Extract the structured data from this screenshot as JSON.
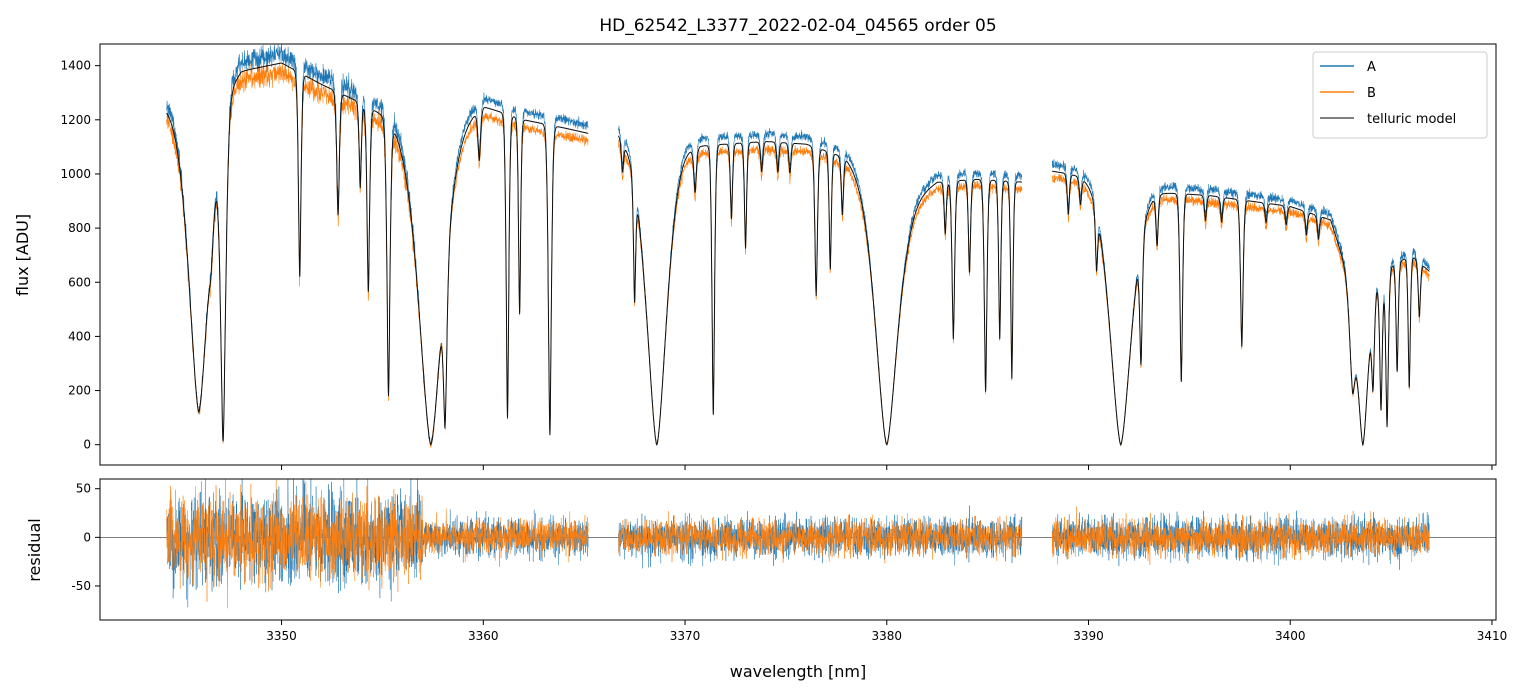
{
  "chart_data": [
    {
      "type": "line",
      "panel": "flux",
      "title": "HD_62542_L3377_2022-02-04_04565  order 05",
      "xlabel": "",
      "ylabel": "flux [ADU]",
      "xlim": [
        3341.0,
        3410.2
      ],
      "ylim": [
        -75,
        1480
      ],
      "yticks": [
        0,
        200,
        400,
        600,
        800,
        1000,
        1200,
        1400
      ],
      "xticks": [
        3350,
        3360,
        3370,
        3380,
        3390,
        3400,
        3410
      ],
      "grid": false,
      "legend": "top-right",
      "colors": {
        "A": "#1f77b4",
        "B": "#ff7f0e",
        "model": "#222222"
      },
      "segments": [
        {
          "x0": 3344.3,
          "x1": 3365.2,
          "continuum": [
            [
              3344.3,
              1250
            ],
            [
              3346.2,
              1200
            ],
            [
              3348.0,
              1380
            ],
            [
              3350.0,
              1410
            ],
            [
              3352.0,
              1330
            ],
            [
              3354.0,
              1260
            ],
            [
              3356.0,
              1180
            ],
            [
              3358.0,
              1150
            ],
            [
              3360.0,
              1250
            ],
            [
              3362.0,
              1200
            ],
            [
              3364.0,
              1170
            ],
            [
              3365.2,
              1150
            ]
          ]
        },
        {
          "x0": 3366.7,
          "x1": 3386.7,
          "continuum": [
            [
              3366.7,
              1150
            ],
            [
              3368.0,
              1050
            ],
            [
              3370.0,
              1100
            ],
            [
              3372.0,
              1110
            ],
            [
              3374.0,
              1120
            ],
            [
              3376.0,
              1110
            ],
            [
              3378.0,
              1060
            ],
            [
              3379.5,
              960
            ],
            [
              3381.0,
              900
            ],
            [
              3382.5,
              970
            ],
            [
              3384.5,
              980
            ],
            [
              3386.7,
              970
            ]
          ]
        },
        {
          "x0": 3388.2,
          "x1": 3406.9,
          "continuum": [
            [
              3388.2,
              1010
            ],
            [
              3390.0,
              990
            ],
            [
              3392.0,
              950
            ],
            [
              3394.0,
              930
            ],
            [
              3396.0,
              920
            ],
            [
              3398.0,
              900
            ],
            [
              3400.0,
              880
            ],
            [
              3402.0,
              830
            ],
            [
              3403.0,
              600
            ],
            [
              3404.5,
              640
            ],
            [
              3406.0,
              700
            ],
            [
              3406.9,
              640
            ]
          ]
        }
      ],
      "absorption_lines": [
        [
          3345.9,
          0.9,
          0.45
        ],
        [
          3347.1,
          0.99,
          0.12
        ],
        [
          3346.5,
          0.15,
          0.1
        ],
        [
          3350.9,
          0.55,
          0.06
        ],
        [
          3352.8,
          0.35,
          0.06
        ],
        [
          3353.9,
          0.25,
          0.05
        ],
        [
          3354.3,
          0.55,
          0.06
        ],
        [
          3355.3,
          0.85,
          0.07
        ],
        [
          3357.4,
          1.0,
          0.55
        ],
        [
          3358.1,
          0.9,
          0.08
        ],
        [
          3359.8,
          0.15,
          0.06
        ],
        [
          3361.2,
          0.92,
          0.06
        ],
        [
          3361.8,
          0.6,
          0.05
        ],
        [
          3363.3,
          0.97,
          0.07
        ],
        [
          3366.9,
          0.1,
          0.05
        ],
        [
          3367.5,
          0.45,
          0.05
        ],
        [
          3368.6,
          1.0,
          0.45
        ],
        [
          3370.5,
          0.15,
          0.06
        ],
        [
          3371.4,
          0.9,
          0.06
        ],
        [
          3372.3,
          0.25,
          0.05
        ],
        [
          3373.0,
          0.35,
          0.05
        ],
        [
          3373.8,
          0.1,
          0.05
        ],
        [
          3374.6,
          0.1,
          0.05
        ],
        [
          3375.2,
          0.1,
          0.05
        ],
        [
          3376.5,
          0.5,
          0.06
        ],
        [
          3377.2,
          0.4,
          0.05
        ],
        [
          3377.8,
          0.2,
          0.05
        ],
        [
          3380.0,
          1.0,
          0.5
        ],
        [
          3382.9,
          0.2,
          0.05
        ],
        [
          3383.3,
          0.6,
          0.06
        ],
        [
          3384.1,
          0.35,
          0.05
        ],
        [
          3384.9,
          0.8,
          0.06
        ],
        [
          3385.6,
          0.6,
          0.05
        ],
        [
          3386.2,
          0.75,
          0.05
        ],
        [
          3389.0,
          0.15,
          0.05
        ],
        [
          3389.6,
          0.1,
          0.05
        ],
        [
          3390.4,
          0.25,
          0.05
        ],
        [
          3391.6,
          1.0,
          0.5
        ],
        [
          3392.6,
          0.6,
          0.06
        ],
        [
          3393.4,
          0.2,
          0.05
        ],
        [
          3394.6,
          0.75,
          0.06
        ],
        [
          3395.8,
          0.1,
          0.05
        ],
        [
          3396.6,
          0.1,
          0.05
        ],
        [
          3397.6,
          0.6,
          0.06
        ],
        [
          3398.8,
          0.08,
          0.05
        ],
        [
          3399.8,
          0.08,
          0.05
        ],
        [
          3400.8,
          0.1,
          0.05
        ],
        [
          3401.4,
          0.1,
          0.05
        ],
        [
          3403.1,
          0.6,
          0.12
        ],
        [
          3403.6,
          1.0,
          0.25
        ],
        [
          3404.1,
          0.6,
          0.06
        ],
        [
          3404.5,
          0.8,
          0.06
        ],
        [
          3404.8,
          0.9,
          0.06
        ],
        [
          3405.3,
          0.6,
          0.05
        ],
        [
          3405.9,
          0.7,
          0.05
        ],
        [
          3406.4,
          0.3,
          0.05
        ]
      ],
      "series": [
        {
          "name": "A",
          "color": "#1f77b4"
        },
        {
          "name": "B",
          "color": "#ff7f0e"
        },
        {
          "name": "telluric model",
          "color": "#555555"
        }
      ]
    },
    {
      "type": "line",
      "panel": "residual",
      "xlabel": "wavelength [nm]",
      "ylabel": "residual",
      "xlim": [
        3341.0,
        3410.2
      ],
      "ylim": [
        -85,
        60
      ],
      "yticks": [
        -50,
        0,
        50
      ],
      "xticks": [
        3350,
        3360,
        3370,
        3380,
        3390,
        3400,
        3410
      ],
      "grid": false,
      "zero_line": true,
      "series": [
        {
          "name": "A",
          "color": "#1f77b4"
        },
        {
          "name": "B",
          "color": "#ff7f0e"
        }
      ]
    }
  ]
}
